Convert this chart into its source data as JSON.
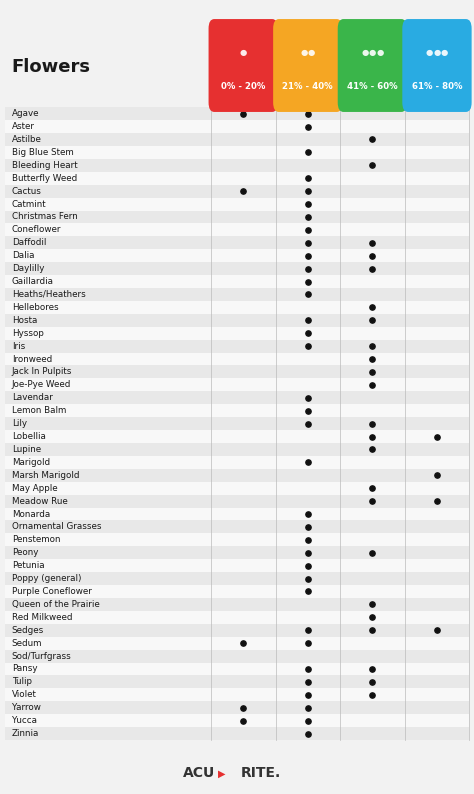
{
  "title": "Flowers",
  "columns": [
    "0% - 20%",
    "21% - 40%",
    "41% - 60%",
    "61% - 80%"
  ],
  "col_colors": [
    "#e63030",
    "#f5a623",
    "#3ab54a",
    "#29abe2"
  ],
  "flowers": [
    "Agave",
    "Aster",
    "Astilbe",
    "Big Blue Stem",
    "Bleeding Heart",
    "Butterfly Weed",
    "Cactus",
    "Catmint",
    "Christmas Fern",
    "Coneflower",
    "Daffodil",
    "Dalia",
    "Daylilly",
    "Gaillardia",
    "Heaths/Heathers",
    "Hellebores",
    "Hosta",
    "Hyssop",
    "Iris",
    "Ironweed",
    "Jack In Pulpits",
    "Joe-Pye Weed",
    "Lavendar",
    "Lemon Balm",
    "Lily",
    "Lobellia",
    "Lupine",
    "Marigold",
    "Marsh Marigold",
    "May Apple",
    "Meadow Rue",
    "Monarda",
    "Ornamental Grasses",
    "Penstemon",
    "Peony",
    "Petunia",
    "Poppy (general)",
    "Purple Coneflower",
    "Queen of the Prairie",
    "Red Milkweed",
    "Sedges",
    "Sedum",
    "Sod/Turfgrass",
    "Pansy",
    "Tulip",
    "Violet",
    "Yarrow",
    "Yucca",
    "Zinnia"
  ],
  "dots": {
    "Agave": [
      1,
      1,
      0,
      0
    ],
    "Aster": [
      0,
      1,
      0,
      0
    ],
    "Astilbe": [
      0,
      0,
      1,
      0
    ],
    "Big Blue Stem": [
      0,
      1,
      0,
      0
    ],
    "Bleeding Heart": [
      0,
      0,
      1,
      0
    ],
    "Butterfly Weed": [
      0,
      1,
      0,
      0
    ],
    "Cactus": [
      1,
      1,
      0,
      0
    ],
    "Catmint": [
      0,
      1,
      0,
      0
    ],
    "Christmas Fern": [
      0,
      1,
      0,
      0
    ],
    "Coneflower": [
      0,
      1,
      0,
      0
    ],
    "Daffodil": [
      0,
      1,
      1,
      0
    ],
    "Dalia": [
      0,
      1,
      1,
      0
    ],
    "Daylilly": [
      0,
      1,
      1,
      0
    ],
    "Gaillardia": [
      0,
      1,
      0,
      0
    ],
    "Heaths/Heathers": [
      0,
      1,
      0,
      0
    ],
    "Hellebores": [
      0,
      0,
      1,
      0
    ],
    "Hosta": [
      0,
      1,
      1,
      0
    ],
    "Hyssop": [
      0,
      1,
      0,
      0
    ],
    "Iris": [
      0,
      1,
      1,
      0
    ],
    "Ironweed": [
      0,
      0,
      1,
      0
    ],
    "Jack In Pulpits": [
      0,
      0,
      1,
      0
    ],
    "Joe-Pye Weed": [
      0,
      0,
      1,
      0
    ],
    "Lavendar": [
      0,
      1,
      0,
      0
    ],
    "Lemon Balm": [
      0,
      1,
      0,
      0
    ],
    "Lily": [
      0,
      1,
      1,
      0
    ],
    "Lobellia": [
      0,
      0,
      1,
      1
    ],
    "Lupine": [
      0,
      0,
      1,
      0
    ],
    "Marigold": [
      0,
      1,
      0,
      0
    ],
    "Marsh Marigold": [
      0,
      0,
      0,
      1
    ],
    "May Apple": [
      0,
      0,
      1,
      0
    ],
    "Meadow Rue": [
      0,
      0,
      1,
      1
    ],
    "Monarda": [
      0,
      1,
      0,
      0
    ],
    "Ornamental Grasses": [
      0,
      1,
      0,
      0
    ],
    "Penstemon": [
      0,
      1,
      0,
      0
    ],
    "Peony": [
      0,
      1,
      1,
      0
    ],
    "Petunia": [
      0,
      1,
      0,
      0
    ],
    "Poppy (general)": [
      0,
      1,
      0,
      0
    ],
    "Purple Coneflower": [
      0,
      1,
      0,
      0
    ],
    "Queen of the Prairie": [
      0,
      0,
      1,
      0
    ],
    "Red Milkweed": [
      0,
      0,
      1,
      0
    ],
    "Sedges": [
      0,
      1,
      1,
      1
    ],
    "Sedum": [
      1,
      1,
      0,
      0
    ],
    "Sod/Turfgrass": [
      0,
      0,
      0,
      0
    ],
    "Pansy": [
      0,
      1,
      1,
      0
    ],
    "Tulip": [
      0,
      1,
      1,
      0
    ],
    "Violet": [
      0,
      1,
      1,
      0
    ],
    "Yarrow": [
      1,
      1,
      0,
      0
    ],
    "Yucca": [
      1,
      1,
      0,
      0
    ],
    "Zinnia": [
      0,
      1,
      0,
      0
    ]
  },
  "n_drops": [
    1,
    2,
    3,
    3
  ],
  "bg_color": "#f2f2f2",
  "row_even_color": "#e8e8e8",
  "row_odd_color": "#f8f8f8",
  "dot_color": "#111111",
  "figsize": [
    4.74,
    7.94
  ],
  "dpi": 100
}
